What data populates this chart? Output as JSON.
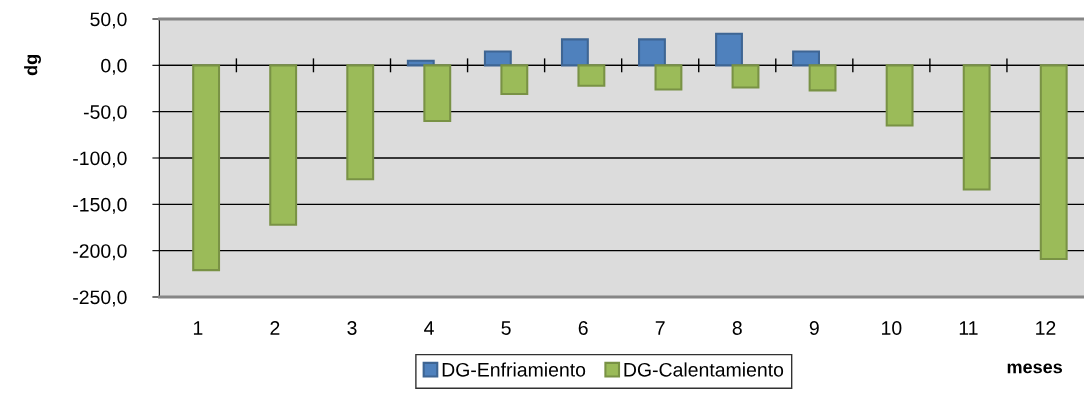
{
  "chart_data": {
    "type": "bar",
    "xlabel": "meses",
    "ylabel": "dg",
    "categories": [
      "1",
      "2",
      "3",
      "4",
      "5",
      "6",
      "7",
      "8",
      "9",
      "10",
      "11",
      "12"
    ],
    "series": [
      {
        "name": "DG-Enfriamiento",
        "color": "#4f81bd",
        "values": [
          null,
          null,
          null,
          5,
          15,
          28,
          28,
          34,
          15,
          null,
          null,
          null
        ]
      },
      {
        "name": "DG-Calentamiento",
        "color": "#9bbb59",
        "values": [
          -221,
          -172,
          -123,
          -60,
          -31,
          -22,
          -26,
          -24,
          -27,
          -65,
          -134,
          -209
        ]
      }
    ],
    "ylim": [
      -250,
      50
    ],
    "yticks": [
      {
        "value": -250,
        "label": "-250,0"
      },
      {
        "value": -200,
        "label": "-200,0"
      },
      {
        "value": -150,
        "label": "-150,0"
      },
      {
        "value": -100,
        "label": "-100,0"
      },
      {
        "value": -50,
        "label": "-50,0"
      },
      {
        "value": 0,
        "label": "0,0"
      },
      {
        "value": 50,
        "label": "50,0"
      }
    ],
    "grid": "y",
    "legend": "bottom"
  }
}
